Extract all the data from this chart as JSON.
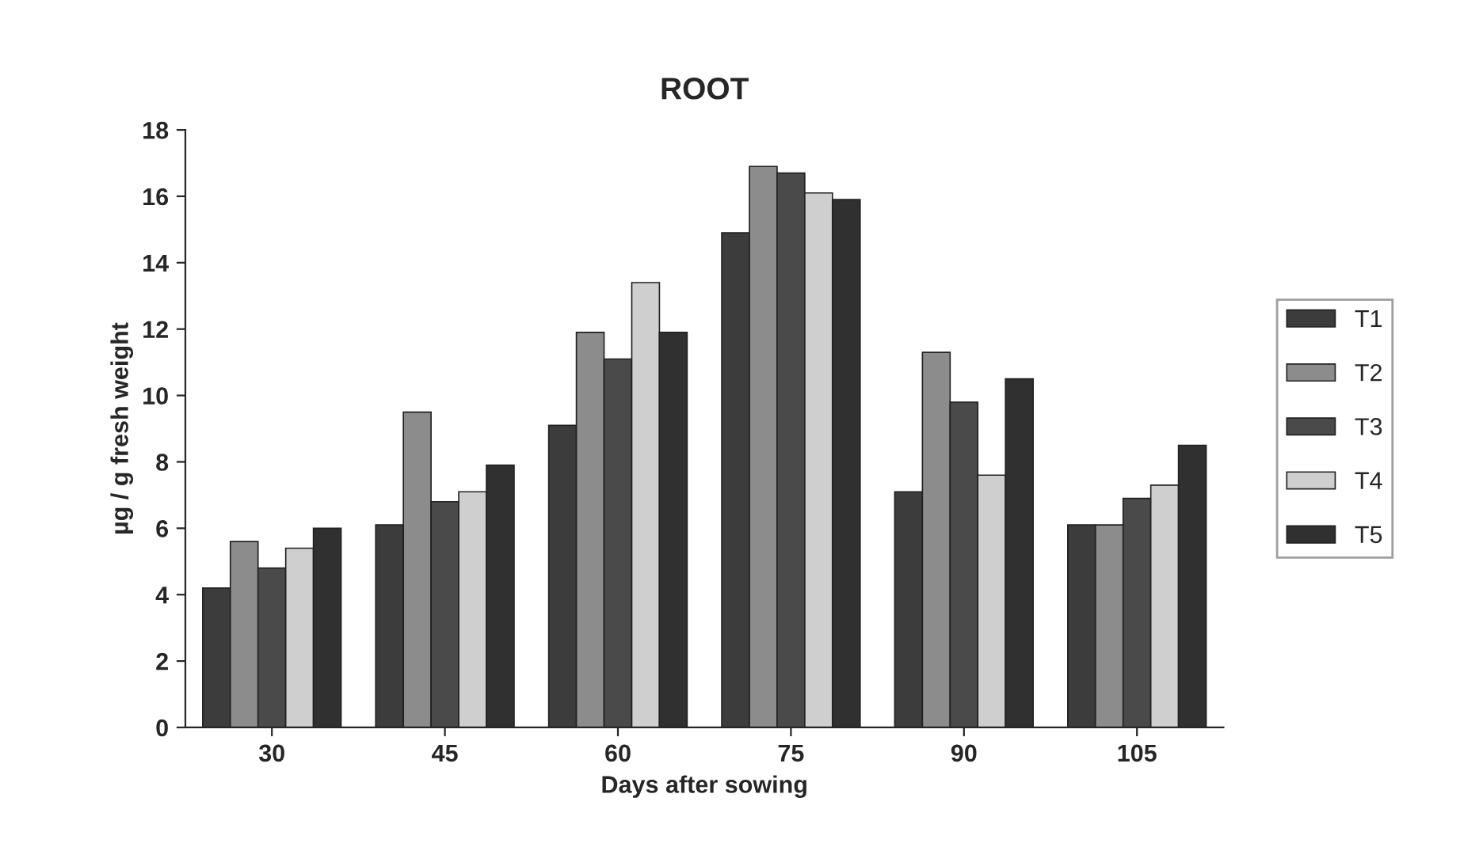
{
  "chart_data": {
    "type": "bar",
    "title": "ROOT",
    "xlabel": "Days after sowing",
    "ylabel": "µg / g fresh weight",
    "categories": [
      "30",
      "45",
      "60",
      "75",
      "90",
      "105"
    ],
    "series": [
      {
        "name": "T1",
        "color": "#3c3c3c",
        "values": [
          4.2,
          6.1,
          9.1,
          14.9,
          7.1,
          6.1
        ]
      },
      {
        "name": "T2",
        "color": "#8c8c8c",
        "values": [
          5.6,
          9.5,
          11.9,
          16.9,
          11.3,
          6.1
        ]
      },
      {
        "name": "T3",
        "color": "#4a4a4a",
        "values": [
          4.8,
          6.8,
          11.1,
          16.7,
          9.8,
          6.9
        ]
      },
      {
        "name": "T4",
        "color": "#cfcfcf",
        "values": [
          5.4,
          7.1,
          13.4,
          16.1,
          7.6,
          7.3
        ]
      },
      {
        "name": "T5",
        "color": "#303030",
        "values": [
          6.0,
          7.9,
          11.9,
          15.9,
          10.5,
          8.5
        ]
      }
    ],
    "ylim": [
      0,
      18
    ],
    "yticks": [
      0,
      2,
      4,
      6,
      8,
      10,
      12,
      14,
      16,
      18
    ],
    "grid": false,
    "legend": "right"
  }
}
